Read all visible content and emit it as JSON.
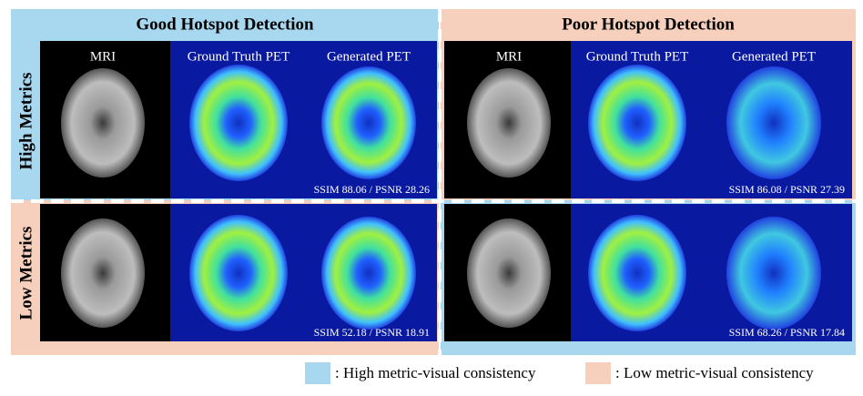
{
  "columns": [
    {
      "title": "Good Hotspot Detection",
      "panel_labels": [
        "MRI",
        "Ground Truth PET",
        "Generated PET"
      ]
    },
    {
      "title": "Poor Hotspot Detection",
      "panel_labels": [
        "MRI",
        "Ground Truth PET",
        "Generated PET"
      ]
    }
  ],
  "rows": [
    "High Metrics",
    "Low Metrics"
  ],
  "metrics": [
    [
      "SSIM 88.06 / PSNR 28.26",
      "SSIM 86.08 / PSNR 27.39"
    ],
    [
      "SSIM 52.18 / PSNR 18.91",
      "SSIM 68.26 / PSNR 17.84"
    ]
  ],
  "legend": [
    ": High metric-visual consistency",
    ": Low metric-visual consistency"
  ]
}
